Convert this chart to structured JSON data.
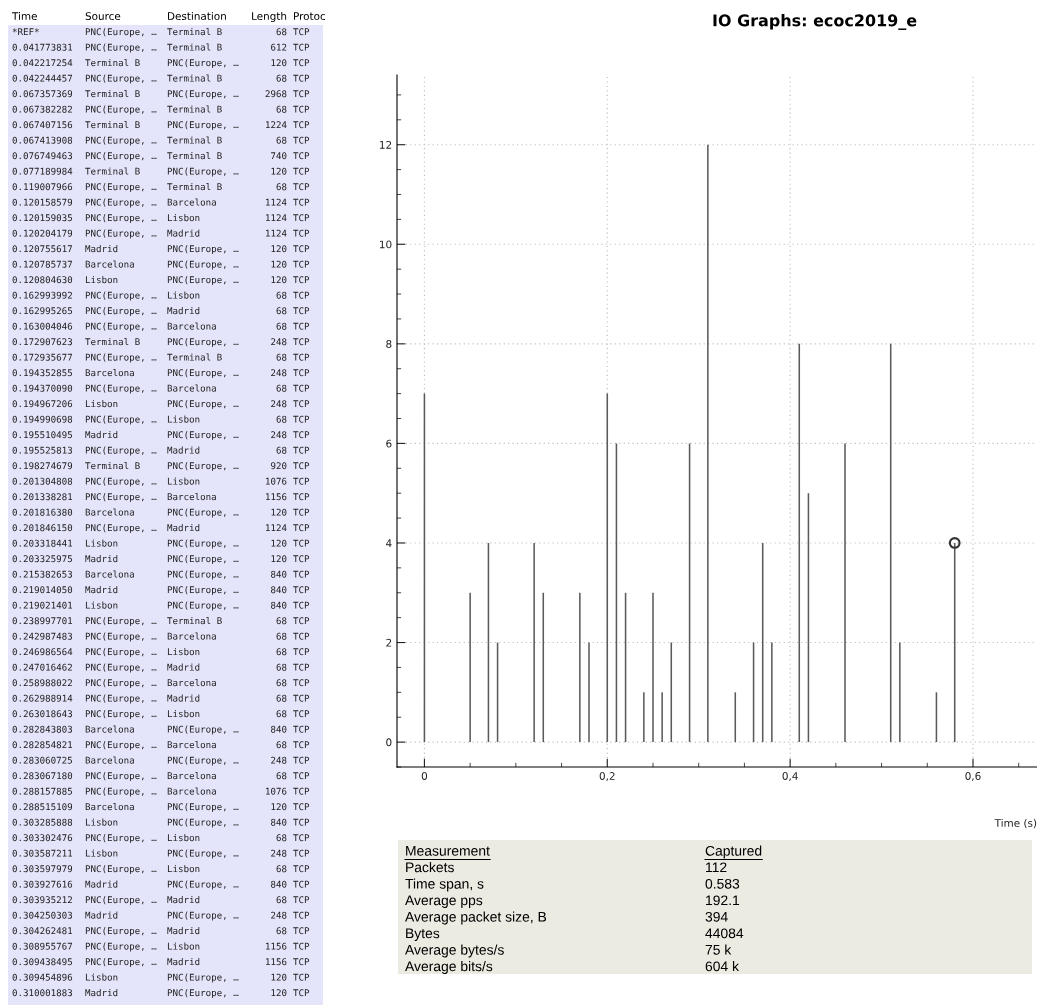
{
  "chart_data": [
    {
      "type": "other",
      "annotations": [
        "Time\tSource\tDestination\tLength\tProtoc",
        "*REF*\tPNC(Europe, …\tTerminal B\t68\tTCP",
        "0.041773831\tPNC(Europe, …\tTerminal B\t612\tTCP",
        "0.042217254\tTerminal B\tPNC(Europe, …\t120\tTCP",
        "0.042244457\tPNC(Europe, …\tTerminal B\t68\tTCP",
        "0.067357369\tTerminal B\tPNC(Europe, …\t2968\tTCP",
        "0.067382282\tPNC(Europe, …\tTerminal B\t68\tTCP",
        "0.067407156\tTerminal B\tPNC(Europe, …\t1224\tTCP",
        "0.067413908\tPNC(Europe, …\tTerminal B\t68\tTCP",
        "0.076749463\tPNC(Europe, …\tTerminal B\t740\tTCP",
        "0.077189984\tTerminal B\tPNC(Europe, …\t120\tTCP",
        "0.119007966\tPNC(Europe, …\tTerminal B\t68\tTCP",
        "0.120158579\tPNC(Europe, …\tBarcelona\t1124\tTCP",
        "0.120159035\tPNC(Europe, …\tLisbon\t1124\tTCP",
        "0.120204179\tPNC(Europe, …\tMadrid\t1124\tTCP",
        "0.120755617\tMadrid\tPNC(Europe, …\t120\tTCP",
        "0.120785737\tBarcelona\tPNC(Europe, …\t120\tTCP",
        "0.120804630\tLisbon\tPNC(Europe, …\t120\tTCP",
        "0.162993992\tPNC(Europe, …\tLisbon\t68\tTCP",
        "0.162995265\tPNC(Europe, …\tMadrid\t68\tTCP",
        "0.163004046\tPNC(Europe, …\tBarcelona\t68\tTCP",
        "0.172907623\tTerminal B\tPNC(Europe, …\t248\tTCP",
        "0.172935677\tPNC(Europe, …\tTerminal B\t68\tTCP",
        "0.194352855\tBarcelona\tPNC(Europe, …\t248\tTCP",
        "0.194370090\tPNC(Europe, …\tBarcelona\t68\tTCP",
        "0.194967206\tLisbon\tPNC(Europe, …\t248\tTCP",
        "0.194990698\tPNC(Europe, …\tLisbon\t68\tTCP",
        "0.195510495\tMadrid\tPNC(Europe, …\t248\tTCP",
        "0.195525813\tPNC(Europe, …\tMadrid\t68\tTCP",
        "0.198274679\tTerminal B\tPNC(Europe, …\t920\tTCP",
        "0.201304808\tPNC(Europe, …\tLisbon\t1076\tTCP",
        "0.201338281\tPNC(Europe, …\tBarcelona\t1156\tTCP",
        "0.201816380\tBarcelona\tPNC(Europe, …\t120\tTCP",
        "0.201846150\tPNC(Europe, …\tMadrid\t1124\tTCP",
        "0.203318441\tLisbon\tPNC(Europe, …\t120\tTCP",
        "0.203325975\tMadrid\tPNC(Europe, …\t120\tTCP",
        "0.215382653\tBarcelona\tPNC(Europe, …\t840\tTCP",
        "0.219014050\tMadrid\tPNC(Europe, …\t840\tTCP",
        "0.219021401\tLisbon\tPNC(Europe, …\t840\tTCP",
        "0.238997701\tPNC(Europe, …\tTerminal B\t68\tTCP",
        "0.242987483\tPNC(Europe, …\tBarcelona\t68\tTCP",
        "0.246986564\tPNC(Europe, …\tLisbon\t68\tTCP",
        "0.247016462\tPNC(Europe, …\tMadrid\t68\tTCP",
        "0.258988022\tPNC(Europe, …\tBarcelona\t68\tTCP",
        "0.262988914\tPNC(Europe, …\tMadrid\t68\tTCP",
        "0.263018643\tPNC(Europe, …\tLisbon\t68\tTCP",
        "0.282843803\tBarcelona\tPNC(Europe, …\t840\tTCP",
        "0.282854821\tPNC(Europe, …\tBarcelona\t68\tTCP",
        "0.283060725\tBarcelona\tPNC(Europe, …\t248\tTCP",
        "0.283067180\tPNC(Europe, …\tBarcelona\t68\tTCP",
        "0.288157885\tPNC(Europe, …\tBarcelona\t1076\tTCP",
        "0.288515109\tBarcelona\tPNC(Europe, …\t120\tTCP",
        "0.303285888\tLisbon\tPNC(Europe, …\t840\tTCP",
        "0.303302476\tPNC(Europe, …\tLisbon\t68\tTCP",
        "0.303587211\tLisbon\tPNC(Europe, …\t248\tTCP",
        "0.303597979\tPNC(Europe, …\tLisbon\t68\tTCP",
        "0.303927616\tMadrid\tPNC(Europe, …\t840\tTCP",
        "0.303935212\tPNC(Europe, …\tMadrid\t68\tTCP",
        "0.304250303\tMadrid\tPNC(Europe, …\t248\tTCP",
        "0.304262481\tPNC(Europe, …\tMadrid\t68\tTCP",
        "0.308955767\tPNC(Europe, …\tLisbon\t1156\tTCP",
        "0.309438495\tPNC(Europe, …\tMadrid\t1156\tTCP",
        "0.309454896\tLisbon\tPNC(Europe, …\t120\tTCP",
        "0.310001883\tMadrid\tPNC(Europe, …\t120\tTCP"
      ]
    },
    {
      "type": "bar",
      "title": "IO Graphs: ecoc2019_e",
      "xlabel": "Time (s)",
      "xlim": [
        -0.03,
        0.67
      ],
      "ylim": [
        -0.5,
        13.4
      ],
      "xticks": [
        0,
        {
          "value": 0.2,
          "label": "0,2"
        },
        {
          "value": 0.4,
          "label": "0,4"
        },
        {
          "value": 0.6,
          "label": "0,6"
        }
      ],
      "yticks": [
        0,
        2,
        4,
        6,
        8,
        10,
        12
      ],
      "grid": true,
      "series": [
        {
          "type": "bar",
          "color": "#5a5a5a",
          "x": [
            0,
            0.01,
            0.02,
            0.03,
            0.04,
            0.05,
            0.06,
            0.07,
            0.08,
            0.09,
            0.1,
            0.11,
            0.12,
            0.13,
            0.14,
            0.15,
            0.16,
            0.17,
            0.18,
            0.19,
            0.2,
            0.21,
            0.22,
            0.23,
            0.24,
            0.25,
            0.26,
            0.27,
            0.28,
            0.29,
            0.3,
            0.31,
            0.32,
            0.33,
            0.34,
            0.35,
            0.36,
            0.37,
            0.38,
            0.39,
            0.4,
            0.41,
            0.42,
            0.43,
            0.44,
            0.45,
            0.46,
            0.47,
            0.48,
            0.49,
            0.5,
            0.51,
            0.52,
            0.53,
            0.54,
            0.55,
            0.56,
            0.57,
            0.58
          ],
          "values": [
            7,
            0,
            0,
            0,
            0,
            3,
            0,
            4,
            2,
            0,
            0,
            0,
            4,
            3,
            0,
            0,
            0,
            3,
            2,
            0,
            7,
            6,
            3,
            0,
            1,
            3,
            1,
            2,
            0,
            6,
            0,
            12,
            0,
            0,
            1,
            0,
            2,
            4,
            2,
            0,
            0,
            8,
            5,
            0,
            0,
            0,
            6,
            0,
            0,
            0,
            0,
            8,
            2,
            0,
            0,
            0,
            1,
            0,
            4
          ]
        },
        {
          "type": "scatter",
          "marker": "circle",
          "color": "#333333",
          "x": [
            0.58
          ],
          "values": [
            4
          ]
        }
      ]
    },
    {
      "type": "other",
      "annotations": [
        "Measurement\tCaptured",
        "Packets\t112",
        "Time span, s\t0.583",
        "Average pps\t192.1",
        "Average packet size, B\t394",
        "Bytes\t44084",
        "Average bytes/s\t75 k",
        "Average bits/s\t604 k"
      ]
    }
  ]
}
